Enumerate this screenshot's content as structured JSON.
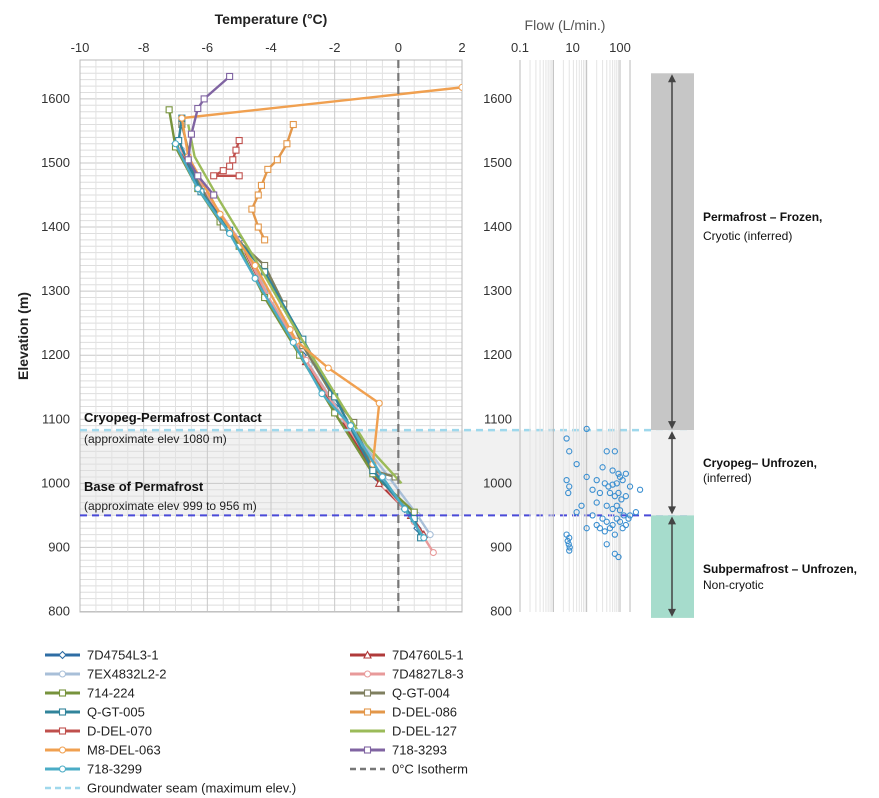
{
  "chart_data": [
    {
      "type": "line",
      "title": "Temperature (°C)",
      "ylabel": "Elevation (m)",
      "xlim": [
        -10,
        2
      ],
      "ylim": [
        800,
        1650
      ],
      "x_ticks": [
        "-10",
        "-8",
        "-6",
        "-4",
        "-2",
        "0",
        "2"
      ],
      "y_ticks": [
        "800",
        "900",
        "1000",
        "1100",
        "1200",
        "1300",
        "1400",
        "1500",
        "1600"
      ],
      "annotations": {
        "contact_title": "Cryopeg-Permafrost Contact",
        "contact_sub": "(approximate elev 1080 m)",
        "base_title": "Base of Permafrost",
        "base_sub": "(approximate elev 999 to 956 m)"
      },
      "reference_lines": [
        {
          "name": "Groundwater seam (maximum elev.)",
          "elevation": 1083,
          "color": "#9fd8ec",
          "style": "dashed"
        },
        {
          "name": "Base of permafrost line",
          "elevation": 950,
          "color": "#4a4ad8",
          "style": "dashed"
        },
        {
          "name": "0°C Isotherm",
          "temperature": 0,
          "color": "#777777",
          "style": "dashed"
        }
      ],
      "series": [
        {
          "name": "7D4754L3-1",
          "color": "#2e6da4",
          "marker": "diamond",
          "points": [
            [
              -7.0,
              1530
            ],
            [
              -6.2,
              1460
            ],
            [
              -5.0,
              1380
            ],
            [
              -4.2,
              1300
            ],
            [
              -3.0,
              1200
            ],
            [
              -2.0,
              1120
            ],
            [
              -0.7,
              1010
            ],
            [
              0.2,
              960
            ],
            [
              0.6,
              930
            ]
          ]
        },
        {
          "name": "7D4760L5-1",
          "color": "#b03a3a",
          "marker": "triangle",
          "points": [
            [
              -6.9,
              1525
            ],
            [
              -6.1,
              1455
            ],
            [
              -4.9,
              1370
            ],
            [
              -4.1,
              1290
            ],
            [
              -2.9,
              1190
            ],
            [
              -1.9,
              1110
            ],
            [
              -0.6,
              1000
            ],
            [
              0.4,
              950
            ],
            [
              0.8,
              920
            ]
          ]
        },
        {
          "name": "7EX4832L2-2",
          "color": "#a8bfd8",
          "marker": "circle",
          "points": [
            [
              -6.8,
              1520
            ],
            [
              -6.0,
              1450
            ],
            [
              -4.8,
              1365
            ],
            [
              -4.0,
              1285
            ],
            [
              -2.8,
              1185
            ],
            [
              -1.7,
              1100
            ],
            [
              -0.3,
              1010
            ],
            [
              0.6,
              950
            ],
            [
              1.0,
              920
            ]
          ]
        },
        {
          "name": "7D4827L8-3",
          "color": "#e89a9a",
          "marker": "circle",
          "points": [
            [
              -6.9,
              1528
            ],
            [
              -6.1,
              1458
            ],
            [
              -4.9,
              1372
            ],
            [
              -4.1,
              1292
            ],
            [
              -2.9,
              1192
            ],
            [
              -1.8,
              1105
            ],
            [
              -0.4,
              995
            ],
            [
              0.5,
              940
            ],
            [
              1.1,
              892
            ]
          ]
        },
        {
          "name": "714-224",
          "color": "#77933c",
          "marker": "square",
          "points": [
            [
              -7.2,
              1583
            ],
            [
              -7.0,
              1525
            ],
            [
              -6.3,
              1460
            ],
            [
              -5.6,
              1408
            ],
            [
              -5.0,
              1370
            ],
            [
              -4.2,
              1290
            ],
            [
              -3.1,
              1200
            ],
            [
              -2.0,
              1110
            ],
            [
              -0.8,
              1015
            ],
            [
              0.5,
              955
            ]
          ]
        },
        {
          "name": "Q-GT-004",
          "color": "#7f7f5f",
          "marker": "square",
          "points": [
            [
              -6.8,
              1560
            ],
            [
              -6.4,
              1480
            ],
            [
              -5.5,
              1400
            ],
            [
              -4.2,
              1340
            ],
            [
              -3.6,
              1280
            ],
            [
              -3.0,
              1215
            ],
            [
              -2.1,
              1140
            ],
            [
              -1.4,
              1095
            ],
            [
              -0.8,
              1020
            ],
            [
              -0.1,
              1010
            ]
          ]
        },
        {
          "name": "Q-GT-005",
          "color": "#31849b",
          "marker": "square",
          "points": [
            [
              -6.8,
              1570
            ],
            [
              -6.9,
              1535
            ],
            [
              -6.2,
              1455
            ],
            [
              -5.3,
              1395
            ],
            [
              -4.2,
              1330
            ],
            [
              -3.0,
              1225
            ],
            [
              -2.0,
              1135
            ],
            [
              -0.8,
              1020
            ],
            [
              0.5,
              945
            ],
            [
              0.7,
              915
            ]
          ]
        },
        {
          "name": "D-DEL-086",
          "color": "#e3974a",
          "marker": "square",
          "points": [
            [
              -3.3,
              1560
            ],
            [
              -3.5,
              1530
            ],
            [
              -3.8,
              1505
            ],
            [
              -4.1,
              1490
            ],
            [
              -4.3,
              1465
            ],
            [
              -4.4,
              1450
            ],
            [
              -4.6,
              1428
            ],
            [
              -4.4,
              1400
            ],
            [
              -4.2,
              1380
            ]
          ]
        },
        {
          "name": "D-DEL-070",
          "color": "#c0504d",
          "marker": "square",
          "points": [
            [
              -5.0,
              1535
            ],
            [
              -5.1,
              1520
            ],
            [
              -5.2,
              1505
            ],
            [
              -5.3,
              1495
            ],
            [
              -5.5,
              1488
            ],
            [
              -5.8,
              1480
            ],
            [
              -5.0,
              1480
            ]
          ]
        },
        {
          "name": "D-DEL-127",
          "color": "#9bbb59",
          "marker": "none",
          "points": [
            [
              -6.6,
              1560
            ],
            [
              -6.4,
              1510
            ],
            [
              -5.6,
              1440
            ],
            [
              -4.5,
              1350
            ],
            [
              -3.4,
              1255
            ],
            [
              -2.3,
              1165
            ],
            [
              -1.0,
              1060
            ],
            [
              0.1,
              1000
            ]
          ]
        },
        {
          "name": "M8-DEL-063",
          "color": "#f0a050",
          "marker": "circle",
          "points": [
            [
              2.0,
              1618
            ],
            [
              -6.8,
              1570
            ],
            [
              -6.6,
              1510
            ],
            [
              -5.6,
              1420
            ],
            [
              -4.5,
              1340
            ],
            [
              -3.4,
              1240
            ],
            [
              -3.2,
              1222
            ],
            [
              -2.2,
              1180
            ],
            [
              -0.6,
              1125
            ],
            [
              -0.8,
              1030
            ]
          ]
        },
        {
          "name": "718-3293",
          "color": "#8064a2",
          "marker": "square",
          "points": [
            [
              -5.3,
              1635
            ],
            [
              -6.1,
              1600
            ],
            [
              -6.3,
              1585
            ],
            [
              -6.5,
              1545
            ],
            [
              -6.6,
              1505
            ],
            [
              -6.3,
              1480
            ],
            [
              -5.8,
              1450
            ]
          ]
        },
        {
          "name": "718-3299",
          "color": "#4bacc6",
          "marker": "circle",
          "points": [
            [
              -7.0,
              1530
            ],
            [
              -6.3,
              1460
            ],
            [
              -5.3,
              1390
            ],
            [
              -4.5,
              1320
            ],
            [
              -3.3,
              1220
            ],
            [
              -2.4,
              1140
            ],
            [
              -1.5,
              1090
            ],
            [
              -0.5,
              1010
            ],
            [
              0.2,
              960
            ],
            [
              0.8,
              915
            ]
          ]
        }
      ]
    },
    {
      "type": "scatter",
      "title": "Flow (L/min.)",
      "x_scale": "log",
      "x_ticks": [
        "0.1",
        "10",
        "100"
      ],
      "y_ticks": [
        "800",
        "900",
        "1000",
        "1100",
        "1200",
        "1300",
        "1400",
        "1500",
        "1600"
      ],
      "ylim": [
        800,
        1650
      ],
      "points": [
        [
          10,
          1085
        ],
        [
          2.5,
          1070
        ],
        [
          3,
          1050
        ],
        [
          40,
          1050
        ],
        [
          70,
          1050
        ],
        [
          5,
          1030
        ],
        [
          30,
          1025
        ],
        [
          60,
          1020
        ],
        [
          90,
          1015
        ],
        [
          150,
          1015
        ],
        [
          2.5,
          1005
        ],
        [
          3,
          995
        ],
        [
          2.8,
          985
        ],
        [
          10,
          1010
        ],
        [
          20,
          1005
        ],
        [
          35,
          1000
        ],
        [
          45,
          995
        ],
        [
          60,
          998
        ],
        [
          80,
          1000
        ],
        [
          100,
          1010
        ],
        [
          120,
          1005
        ],
        [
          200,
          995
        ],
        [
          400,
          990
        ],
        [
          15,
          990
        ],
        [
          25,
          985
        ],
        [
          50,
          985
        ],
        [
          70,
          980
        ],
        [
          90,
          985
        ],
        [
          110,
          975
        ],
        [
          150,
          980
        ],
        [
          7,
          965
        ],
        [
          20,
          970
        ],
        [
          40,
          965
        ],
        [
          60,
          960
        ],
        [
          80,
          965
        ],
        [
          100,
          958
        ],
        [
          130,
          950
        ],
        [
          200,
          950
        ],
        [
          300,
          955
        ],
        [
          5,
          955
        ],
        [
          15,
          950
        ],
        [
          30,
          945
        ],
        [
          40,
          940
        ],
        [
          60,
          935
        ],
        [
          80,
          945
        ],
        [
          100,
          940
        ],
        [
          120,
          930
        ],
        [
          150,
          935
        ],
        [
          180,
          945
        ],
        [
          20,
          935
        ],
        [
          25,
          930
        ],
        [
          35,
          925
        ],
        [
          50,
          930
        ],
        [
          70,
          920
        ],
        [
          10,
          930
        ],
        [
          2.5,
          920
        ],
        [
          3,
          915
        ],
        [
          2.7,
          910
        ],
        [
          2.9,
          905
        ],
        [
          3.1,
          900
        ],
        [
          3.0,
          895
        ],
        [
          70,
          890
        ],
        [
          90,
          885
        ],
        [
          40,
          905
        ]
      ]
    }
  ],
  "zones": [
    {
      "title": "Permafrost – Frozen,",
      "sub": "Cryotic (inferred)",
      "top": 1640,
      "bottom": 1083,
      "color": "#c6c6c6"
    },
    {
      "title": "Cryopeg– Unfrozen,",
      "sub": "(inferred)",
      "top": 1083,
      "bottom": 950,
      "color": "#f0f0f0"
    },
    {
      "title": "Subpermafrost – Unfrozen,",
      "sub": "Non-cryotic",
      "top": 950,
      "bottom": 790,
      "color": "#a6dccc"
    }
  ],
  "legend": {
    "placement": "bottom",
    "entries": [
      {
        "name": "7D4754L3-1",
        "color": "#2e6da4",
        "marker": "diamond",
        "style": "solid"
      },
      {
        "name": "7D4760L5-1",
        "color": "#b03a3a",
        "marker": "triangle",
        "style": "solid"
      },
      {
        "name": "7EX4832L2-2",
        "color": "#a8bfd8",
        "marker": "circle",
        "style": "solid"
      },
      {
        "name": "7D4827L8-3",
        "color": "#e89a9a",
        "marker": "circle",
        "style": "solid"
      },
      {
        "name": "714-224",
        "color": "#77933c",
        "marker": "square",
        "style": "solid"
      },
      {
        "name": "Q-GT-004",
        "color": "#7f7f5f",
        "marker": "square",
        "style": "solid"
      },
      {
        "name": "Q-GT-005",
        "color": "#31849b",
        "marker": "square",
        "style": "solid"
      },
      {
        "name": "D-DEL-086",
        "color": "#e3974a",
        "marker": "square",
        "style": "solid"
      },
      {
        "name": "D-DEL-070",
        "color": "#c0504d",
        "marker": "square",
        "style": "solid"
      },
      {
        "name": "D-DEL-127",
        "color": "#9bbb59",
        "marker": "none",
        "style": "solid"
      },
      {
        "name": "M8-DEL-063",
        "color": "#f0a050",
        "marker": "circle",
        "style": "solid"
      },
      {
        "name": "718-3293",
        "color": "#8064a2",
        "marker": "square",
        "style": "solid"
      },
      {
        "name": "718-3299",
        "color": "#4bacc6",
        "marker": "circle",
        "style": "solid"
      },
      {
        "name": "0°C Isotherm",
        "color": "#777777",
        "marker": "none",
        "style": "dashed"
      },
      {
        "name": "Groundwater seam (maximum elev.)",
        "color": "#9fd8ec",
        "marker": "none",
        "style": "dashed"
      }
    ]
  }
}
